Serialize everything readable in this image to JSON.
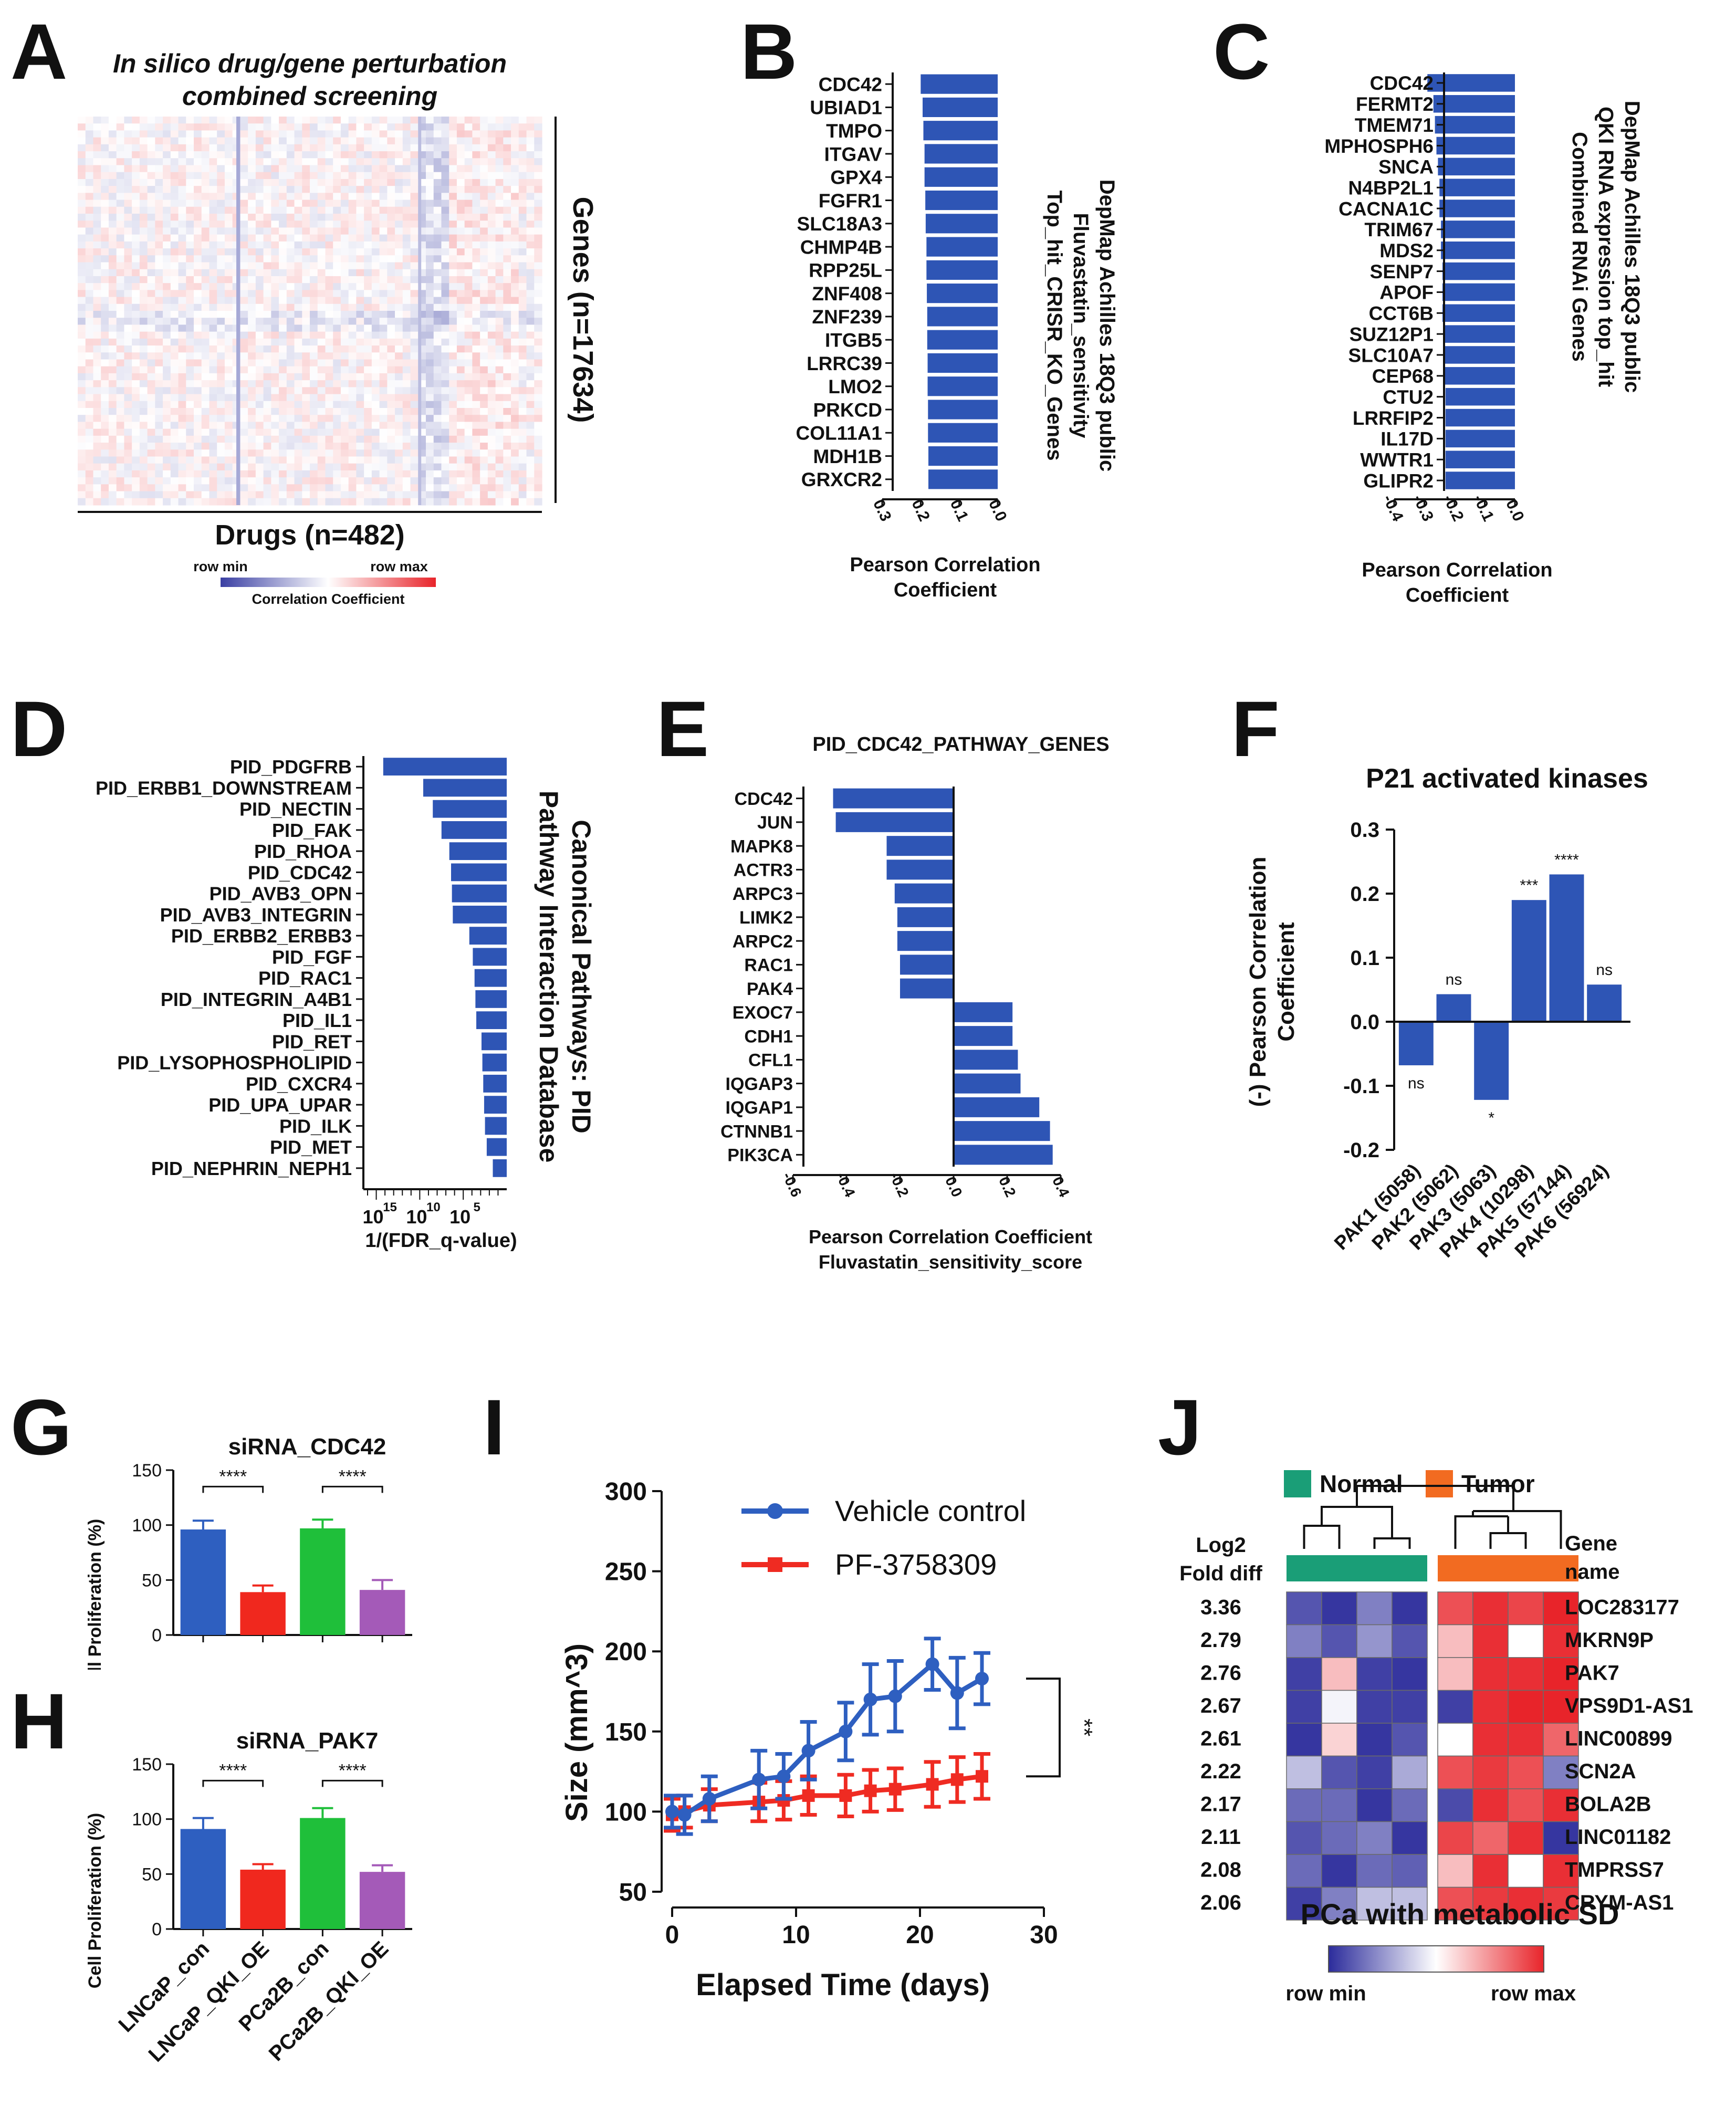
{
  "chart_data": [
    {
      "panel": "A",
      "type": "heatmap",
      "title": "In silico drug/gene perturbation combined screening",
      "title_lines": [
        "In silico drug/gene perturbation",
        "combined screening"
      ],
      "xlabel": "Drugs (n=482)",
      "ylabel": "Genes (n=17634)",
      "colorbar": {
        "min_label": "row min",
        "max_label": "row max",
        "label": "Correlation Coefficient",
        "colors": [
          "#3a3fa3",
          "#ffffff",
          "#e8242a"
        ]
      }
    },
    {
      "panel": "B",
      "type": "bar",
      "orientation": "horizontal",
      "title_lines": [
        "DepMap Achilles 18Q3 public",
        "Fluvastatin_sensitivity",
        "Top_hit_CRISR_KO_Genes"
      ],
      "xlabel_lines": [
        "Pearson  Correlation",
        "Coefficient"
      ],
      "xlim": [
        0.3,
        0.0
      ],
      "ticks": [
        "0.3",
        "0.2",
        "0.1",
        "0.0"
      ],
      "tick_values": [
        0.3,
        0.2,
        0.1,
        0.0
      ],
      "categories": [
        "CDC42",
        "UBIAD1",
        "TMPO",
        "ITGAV",
        "GPX4",
        "FGFR1",
        "SLC18A3",
        "CHMP4B",
        "RPP25L",
        "ZNF408",
        "ZNF239",
        "ITGB5",
        "LRRC39",
        "LMO2",
        "PRKCD",
        "COL11A1",
        "MDH1B",
        "GRXCR2"
      ],
      "values": [
        0.2,
        0.195,
        0.193,
        0.19,
        0.19,
        0.188,
        0.187,
        0.185,
        0.185,
        0.184,
        0.183,
        0.183,
        0.182,
        0.182,
        0.181,
        0.181,
        0.18,
        0.18
      ],
      "color": "#2e55b5"
    },
    {
      "panel": "C",
      "type": "bar",
      "orientation": "horizontal",
      "title_lines": [
        "DepMap Achilles 18Q3 public",
        "QKI RNA expression top_hit",
        "Combined RNAi Genes"
      ],
      "xlabel_lines": [
        "Pearson  Correlation",
        "Coefficient"
      ],
      "xlim": [
        -0.4,
        0.0
      ],
      "ticks": [
        "-0.4",
        "-0.3",
        "-0.2",
        "-0.1",
        "0.0"
      ],
      "tick_values": [
        -0.4,
        -0.3,
        -0.2,
        -0.1,
        0.0
      ],
      "categories": [
        "CDC42",
        "FERMT2",
        "TMEM71",
        "MPHOSPH6",
        "SNCA",
        "N4BP2L1",
        "CACNA1C",
        "TRIM67",
        "MDS2",
        "SENP7",
        "APOF",
        "CCT6B",
        "SUZ12P1",
        "SLC10A7",
        "CEP68",
        "CTU2",
        "LRRFIP2",
        "IL17D",
        "WWTR1",
        "GLIPR2"
      ],
      "values": [
        -0.29,
        -0.27,
        -0.265,
        -0.26,
        -0.255,
        -0.25,
        -0.25,
        -0.245,
        -0.245,
        -0.24,
        -0.24,
        -0.24,
        -0.235,
        -0.235,
        -0.235,
        -0.23,
        -0.23,
        -0.23,
        -0.23,
        -0.23
      ],
      "color": "#2e55b5"
    },
    {
      "panel": "D",
      "type": "bar",
      "orientation": "horizontal",
      "scale": "log",
      "title_lines": [
        "Canonical Pathways: PID",
        "Pathway Interaction Database"
      ],
      "xlabel": "1/(FDR_q-value)",
      "ticks": [
        "10",
        "10",
        "10"
      ],
      "tick_exponents": [
        "15",
        "10",
        "5"
      ],
      "tick_log_values": [
        15,
        10,
        5
      ],
      "log_range": [
        0,
        16
      ],
      "categories": [
        "PID_PDGFRB",
        "PID_ERBB1_DOWNSTREAM",
        "PID_NECTIN",
        "PID_FAK",
        "PID_RHOA",
        "PID_CDC42",
        "PID_AVB3_OPN",
        "PID_AVB3_INTEGRIN",
        "PID_ERBB2_ERBB3",
        "PID_FGF",
        "PID_RAC1",
        "PID_INTEGRIN_A4B1",
        "PID_IL1",
        "PID_RET",
        "PID_LYSOPHOSPHOLIPID",
        "PID_CXCR4",
        "PID_UPA_UPAR",
        "PID_ILK",
        "PID_MET",
        "PID_NEPHRIN_NEPH1"
      ],
      "log10_values": [
        14.2,
        9.6,
        8.5,
        7.5,
        6.6,
        6.4,
        6.3,
        6.2,
        4.3,
        3.9,
        3.7,
        3.6,
        3.5,
        2.9,
        2.8,
        2.7,
        2.6,
        2.5,
        2.3,
        1.6
      ],
      "color": "#2e55b5"
    },
    {
      "panel": "E",
      "type": "bar",
      "orientation": "horizontal",
      "title": "PID_CDC42_PATHWAY_GENES",
      "xlabel_lines": [
        "Pearson Correlation Coefficient",
        "Fluvastatin_sensitivity_score"
      ],
      "xlim": [
        -0.6,
        0.4
      ],
      "ticks": [
        "-0.6",
        "-0.4",
        "-0.2",
        "0.0",
        "0.2",
        "0.4"
      ],
      "tick_values": [
        -0.6,
        -0.4,
        -0.2,
        0.0,
        0.2,
        0.4
      ],
      "categories": [
        "CDC42",
        "JUN",
        "MAPK8",
        "ACTR3",
        "ARPC3",
        "LIMK2",
        "ARPC2",
        "RAC1",
        "PAK4",
        "EXOC7",
        "CDH1",
        "CFL1",
        "IQGAP3",
        "IQGAP1",
        "CTNNB1",
        "PIK3CA"
      ],
      "values": [
        -0.45,
        -0.44,
        -0.25,
        -0.25,
        -0.22,
        -0.21,
        -0.21,
        -0.2,
        -0.2,
        0.22,
        0.22,
        0.24,
        0.25,
        0.32,
        0.36,
        0.37
      ],
      "color": "#2e55b5"
    },
    {
      "panel": "F",
      "type": "bar",
      "title": "P21 activated kinases",
      "ylabel_lines": [
        "(-) Pearson Correlation",
        "Coefficient"
      ],
      "ylim": [
        -0.2,
        0.3
      ],
      "ticks": [
        "0.3",
        "0.2",
        "0.1",
        "0.0",
        "-0.1",
        "-0.2"
      ],
      "tick_values": [
        0.3,
        0.2,
        0.1,
        0.0,
        -0.1,
        -0.2
      ],
      "categories": [
        "PAK1 (5058)",
        "PAK2 (5062)",
        "PAK3 (5063)",
        "PAK4 (10298)",
        "PAK5 (57144)",
        "PAK6 (56924)"
      ],
      "values": [
        -0.068,
        0.043,
        -0.122,
        0.19,
        0.23,
        0.058
      ],
      "significance": [
        "ns",
        "ns",
        "*",
        "***",
        "****",
        "ns"
      ],
      "color": "#2e55b5"
    },
    {
      "panel": "G",
      "type": "bar",
      "title": "siRNA_CDC42",
      "ylabel": "Cell Proliferation (%)",
      "ylim": [
        0,
        150
      ],
      "ticks": [
        "150",
        "100",
        "50",
        "0"
      ],
      "tick_values": [
        150,
        100,
        50,
        0
      ],
      "categories": [
        "LNCaP_con",
        "LNCaP_QKI_OE",
        "PCa2B_con",
        "PCa2B_QKI_OE"
      ],
      "values": [
        96,
        39,
        97,
        41
      ],
      "errors": [
        8,
        6,
        8,
        9
      ],
      "colors": [
        "#2e5fc0",
        "#f0281e",
        "#1fbf3a",
        "#a45ab8"
      ],
      "significance": [
        "****",
        "****"
      ]
    },
    {
      "panel": "H",
      "type": "bar",
      "title": "siRNA_PAK7",
      "ylabel": "Cell Proliferation (%)",
      "ylim": [
        0,
        150
      ],
      "ticks": [
        "150",
        "100",
        "50",
        "0"
      ],
      "tick_values": [
        150,
        100,
        50,
        0
      ],
      "categories": [
        "LNCaP_con",
        "LNCaP_QKI_OE",
        "PCa2B_con",
        "PCa2B_QKI_OE"
      ],
      "values": [
        91,
        54,
        101,
        52
      ],
      "errors": [
        10,
        5,
        9,
        6
      ],
      "colors": [
        "#2e5fc0",
        "#f0281e",
        "#1fbf3a",
        "#a45ab8"
      ],
      "significance": [
        "****",
        "****"
      ]
    },
    {
      "panel": "I",
      "type": "line",
      "xlabel": "Elapsed Time (days)",
      "ylabel": "Size (mm^3)",
      "xlim": [
        0,
        30
      ],
      "ylim": [
        50,
        300
      ],
      "xticks": [
        "0",
        "10",
        "20",
        "30"
      ],
      "xtick_values": [
        0,
        10,
        20,
        30
      ],
      "yticks": [
        "300",
        "250",
        "200",
        "150",
        "100",
        "50"
      ],
      "ytick_values": [
        300,
        250,
        200,
        150,
        100,
        50
      ],
      "series": [
        {
          "name": "Vehicle control",
          "color": "#2e5fc0",
          "marker": "circle",
          "x": [
            0,
            1,
            3,
            7,
            9,
            11,
            14,
            16,
            18,
            21,
            23,
            25
          ],
          "y": [
            100,
            98,
            108,
            120,
            122,
            138,
            150,
            170,
            172,
            192,
            174,
            183
          ],
          "err": [
            10,
            12,
            14,
            18,
            14,
            18,
            18,
            22,
            22,
            16,
            22,
            16
          ]
        },
        {
          "name": "PF-3758309",
          "color": "#ef2b22",
          "marker": "square",
          "x": [
            0,
            1,
            3,
            7,
            9,
            11,
            14,
            16,
            18,
            21,
            23,
            25
          ],
          "y": [
            98,
            100,
            104,
            106,
            107,
            110,
            110,
            113,
            114,
            117,
            120,
            122
          ],
          "err": [
            10,
            10,
            10,
            12,
            12,
            12,
            13,
            13,
            13,
            14,
            14,
            14
          ]
        }
      ],
      "significance": "**"
    },
    {
      "panel": "J",
      "type": "heatmap",
      "title": "PCa with metabolic SD",
      "legend": [
        {
          "label": "Normal",
          "color": "#1a9e77"
        },
        {
          "label": "Tumor",
          "color": "#f26b21"
        }
      ],
      "row_header_left": [
        "Log2",
        "Fold diff"
      ],
      "row_header_right": [
        "Gene",
        "name"
      ],
      "fold_diff": [
        "3.36",
        "2.79",
        "2.76",
        "2.67",
        "2.61",
        "2.22",
        "2.17",
        "2.11",
        "2.08",
        "2.06"
      ],
      "genes": [
        "LOC283177",
        "MKRN9P",
        "PAK7",
        "VPS9D1-AS1",
        "LINC00899",
        "SCN2A",
        "BOLA2B",
        "LINC01182",
        "TMPRSS7",
        "CRYM-AS1"
      ],
      "values": [
        [
          -0.8,
          -0.95,
          -0.6,
          -0.95,
          0.8,
          0.95,
          0.85,
          1.0
        ],
        [
          -0.6,
          -0.8,
          -0.5,
          -0.8,
          0.3,
          0.95,
          0.0,
          0.95
        ],
        [
          -0.9,
          0.3,
          -0.9,
          -0.95,
          0.3,
          0.95,
          0.95,
          1.0
        ],
        [
          -0.9,
          -0.05,
          -0.9,
          -0.9,
          -0.9,
          0.95,
          1.0,
          1.0
        ],
        [
          -0.95,
          0.2,
          -0.95,
          -0.8,
          0.0,
          0.95,
          0.95,
          0.7
        ],
        [
          -0.3,
          -0.8,
          -0.9,
          -0.4,
          0.8,
          0.9,
          0.8,
          -0.6
        ],
        [
          -0.7,
          -0.7,
          -0.95,
          -0.7,
          -0.85,
          0.95,
          0.8,
          0.95
        ],
        [
          -0.8,
          -0.7,
          -0.6,
          -0.95,
          0.85,
          0.7,
          0.95,
          -0.95
        ],
        [
          -0.7,
          -0.95,
          -0.7,
          -0.75,
          0.3,
          0.95,
          0.0,
          0.95
        ],
        [
          -0.9,
          -0.6,
          -0.3,
          -0.3,
          0.8,
          0.9,
          0.95,
          0.9
        ]
      ],
      "colorbar": {
        "min_label": "row min",
        "max_label": "row max",
        "colors": [
          "#2b2b9b",
          "#ffffff",
          "#e8242a"
        ]
      }
    }
  ],
  "panel_labels": [
    "A",
    "B",
    "C",
    "D",
    "E",
    "F",
    "G",
    "H",
    "I",
    "J"
  ]
}
